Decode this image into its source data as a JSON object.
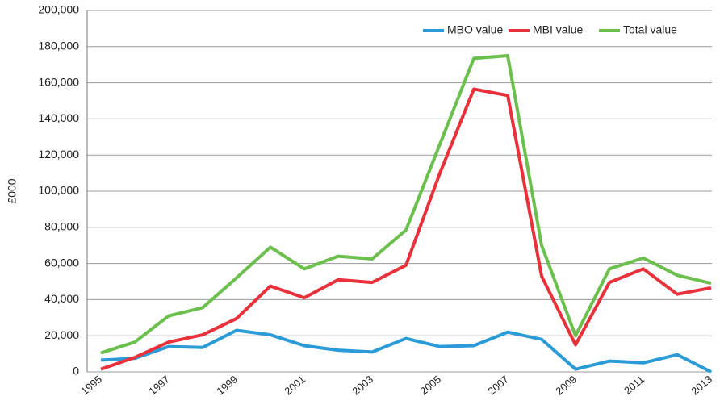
{
  "chart_data": {
    "type": "line",
    "y_label": "£000",
    "categories": [
      "1995",
      null,
      "1997",
      null,
      "1999",
      null,
      "2001",
      null,
      "2003",
      null,
      "2005",
      null,
      "2007",
      null,
      "2009",
      null,
      "2011",
      null,
      "2013"
    ],
    "series": [
      {
        "name": "MBO value",
        "color": "#2b9bd8",
        "values": [
          6500,
          7500,
          14000,
          13500,
          23000,
          20500,
          14500,
          12000,
          11000,
          18500,
          14000,
          14500,
          22000,
          18000,
          1500,
          6000,
          5000,
          9500,
          0
        ]
      },
      {
        "name": "MBI value",
        "color": "#e8313b",
        "values": [
          1500,
          8000,
          16500,
          20500,
          29500,
          47500,
          41000,
          51000,
          49500,
          59000,
          110000,
          156500,
          153000,
          53000,
          15000,
          49500,
          57000,
          43000,
          46500
        ]
      },
      {
        "name": "Total value",
        "color": "#6bbf4c",
        "values": [
          10500,
          16500,
          31000,
          35500,
          52000,
          69000,
          57000,
          64000,
          62500,
          78500,
          126000,
          173500,
          175000,
          70000,
          20000,
          57000,
          63000,
          53500,
          49000
        ]
      }
    ],
    "ylim": [
      0,
      200000
    ],
    "yticks": [
      0,
      {
        "value": 20000,
        "label": "20,000"
      },
      {
        "value": 40000,
        "label": "40,000"
      },
      {
        "value": 60000,
        "label": "60,000"
      },
      {
        "value": 80000,
        "label": "80,000"
      },
      {
        "value": 100000,
        "label": "100,000"
      },
      {
        "value": 120000,
        "label": "120,000"
      },
      {
        "value": 140000,
        "label": "140,000"
      },
      {
        "value": 160000,
        "label": "160,000"
      },
      {
        "value": 180000,
        "label": "180,000"
      },
      {
        "value": 200000,
        "label": "200,000"
      }
    ],
    "grid": true,
    "legend": "top-right"
  }
}
